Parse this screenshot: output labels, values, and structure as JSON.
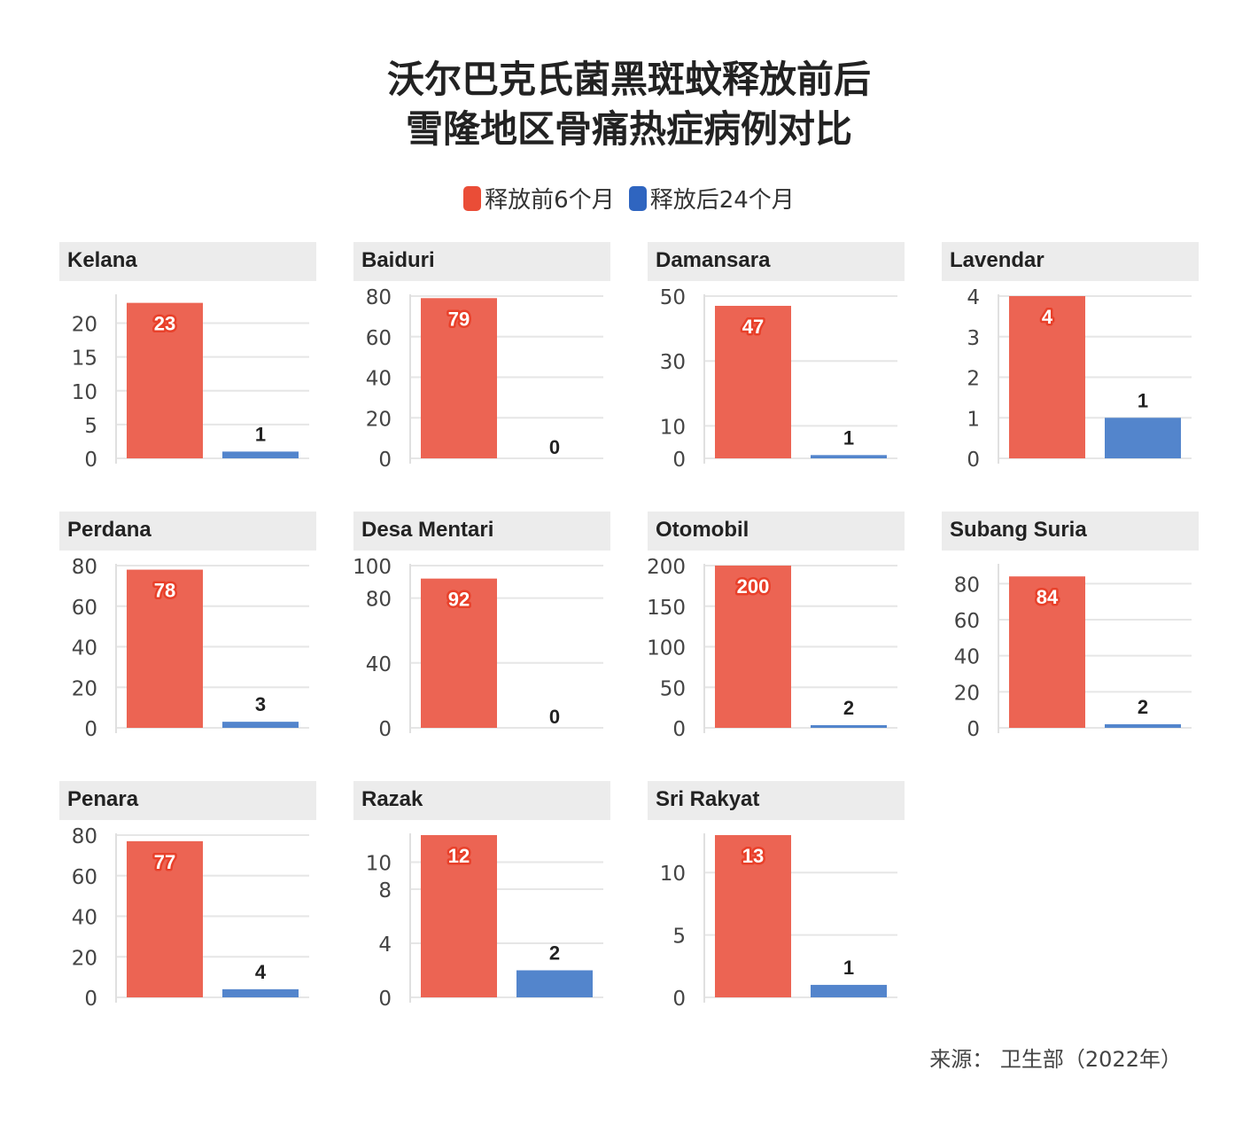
{
  "title_line1": "沃尔巴克氏菌黑斑蚊释放前后",
  "title_line2": "雪隆地区骨痛热症病例对比",
  "legend": [
    {
      "label": "释放前6个月",
      "color": "#ea4d37"
    },
    {
      "label": "释放后24个月",
      "color": "#2f65c0"
    }
  ],
  "source": "来源：  卫生部（2022年）",
  "chart_data": {
    "type": "bar",
    "title": "沃尔巴克氏菌黑斑蚊释放前后 雪隆地区骨痛热症病例对比",
    "series_names": [
      "释放前6个月",
      "释放后24个月"
    ],
    "colors": [
      "#ea4d37",
      "#2f65c0"
    ],
    "panels": [
      {
        "name": "Kelana",
        "values": [
          23,
          1
        ],
        "ylim": [
          0,
          24
        ],
        "ticks": [
          0,
          5,
          10,
          15,
          20
        ]
      },
      {
        "name": "Baiduri",
        "values": [
          79,
          0
        ],
        "ylim": [
          0,
          80
        ],
        "ticks": [
          0,
          20,
          40,
          60,
          80
        ]
      },
      {
        "name": "Damansara",
        "values": [
          47,
          1
        ],
        "ylim": [
          0,
          50
        ],
        "ticks": [
          0,
          10,
          30,
          50
        ]
      },
      {
        "name": "Lavendar",
        "values": [
          4,
          1
        ],
        "ylim": [
          0,
          4
        ],
        "ticks": [
          0,
          1,
          2,
          3,
          4
        ]
      },
      {
        "name": "Perdana",
        "values": [
          78,
          3
        ],
        "ylim": [
          0,
          80
        ],
        "ticks": [
          0,
          20,
          40,
          60,
          80
        ]
      },
      {
        "name": "Desa Mentari",
        "values": [
          92,
          0
        ],
        "ylim": [
          0,
          100
        ],
        "ticks": [
          0,
          40,
          80,
          100
        ]
      },
      {
        "name": "Otomobil",
        "values": [
          200,
          2
        ],
        "ylim": [
          0,
          200
        ],
        "ticks": [
          0,
          50,
          100,
          150,
          200
        ]
      },
      {
        "name": "Subang Suria",
        "values": [
          84,
          2
        ],
        "ylim": [
          0,
          90
        ],
        "ticks": [
          0,
          20,
          40,
          60,
          80
        ]
      },
      {
        "name": "Penara",
        "values": [
          77,
          4
        ],
        "ylim": [
          0,
          80
        ],
        "ticks": [
          0,
          20,
          40,
          60,
          80
        ]
      },
      {
        "name": "Razak",
        "values": [
          12,
          2
        ],
        "ylim": [
          0,
          12
        ],
        "ticks": [
          0,
          4,
          8,
          10
        ]
      },
      {
        "name": "Sri Rakyat",
        "values": [
          13,
          1
        ],
        "ylim": [
          0,
          13
        ],
        "ticks": [
          0,
          5,
          10
        ]
      }
    ]
  }
}
